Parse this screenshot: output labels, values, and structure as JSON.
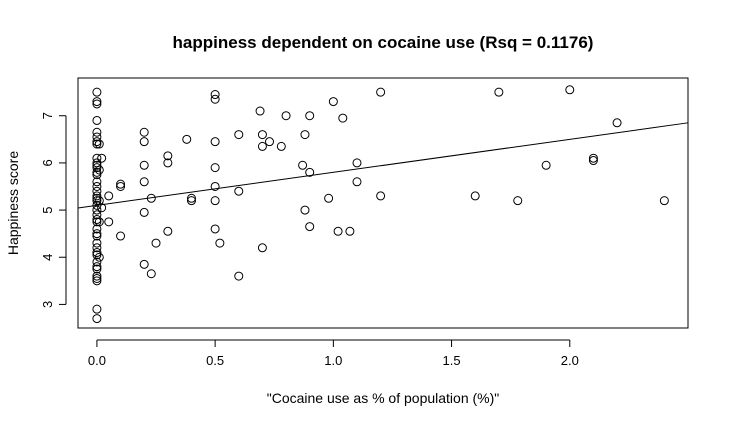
{
  "chart_data": {
    "type": "scatter",
    "title": "happiness dependent on cocaine use (Rsq = 0.1176)",
    "xlabel": "\"Cocaine use as % of population (%)\"",
    "ylabel": "Happiness score",
    "xlim": [
      -0.08,
      2.5
    ],
    "ylim": [
      2.5,
      7.8
    ],
    "x_ticks": [
      0.0,
      0.5,
      1.0,
      1.5,
      2.0
    ],
    "x_tick_labels": [
      "0.0",
      "0.5",
      "1.0",
      "1.5",
      "2.0"
    ],
    "y_ticks": [
      3,
      4,
      5,
      6,
      7
    ],
    "y_tick_labels": [
      "3",
      "4",
      "5",
      "6",
      "7"
    ],
    "grid": false,
    "marker": "open-circle",
    "regression_line": {
      "intercept": 5.1,
      "slope": 0.7
    },
    "points": [
      [
        0.0,
        7.5
      ],
      [
        0.0,
        7.3
      ],
      [
        0.0,
        7.25
      ],
      [
        0.0,
        6.9
      ],
      [
        0.0,
        6.65
      ],
      [
        0.0,
        6.55
      ],
      [
        0.0,
        6.45
      ],
      [
        0.0,
        6.4
      ],
      [
        0.0,
        6.1
      ],
      [
        0.0,
        6.0
      ],
      [
        0.0,
        5.95
      ],
      [
        0.0,
        5.9
      ],
      [
        0.0,
        5.8
      ],
      [
        0.0,
        5.75
      ],
      [
        0.0,
        5.6
      ],
      [
        0.0,
        5.5
      ],
      [
        0.0,
        5.4
      ],
      [
        0.0,
        5.3
      ],
      [
        0.0,
        5.25
      ],
      [
        0.0,
        5.2
      ],
      [
        0.0,
        5.1
      ],
      [
        0.0,
        5.0
      ],
      [
        0.0,
        4.9
      ],
      [
        0.0,
        4.8
      ],
      [
        0.0,
        4.75
      ],
      [
        0.0,
        4.6
      ],
      [
        0.0,
        4.5
      ],
      [
        0.0,
        4.45
      ],
      [
        0.0,
        4.3
      ],
      [
        0.0,
        4.2
      ],
      [
        0.0,
        4.1
      ],
      [
        0.0,
        4.05
      ],
      [
        0.0,
        3.9
      ],
      [
        0.0,
        3.8
      ],
      [
        0.0,
        3.75
      ],
      [
        0.0,
        3.6
      ],
      [
        0.0,
        3.55
      ],
      [
        0.0,
        3.5
      ],
      [
        0.0,
        2.9
      ],
      [
        0.0,
        2.7
      ],
      [
        0.01,
        6.4
      ],
      [
        0.01,
        5.85
      ],
      [
        0.01,
        5.2
      ],
      [
        0.01,
        4.75
      ],
      [
        0.01,
        4.0
      ],
      [
        0.02,
        6.1
      ],
      [
        0.02,
        5.05
      ],
      [
        0.05,
        5.3
      ],
      [
        0.05,
        4.75
      ],
      [
        0.1,
        5.55
      ],
      [
        0.1,
        5.5
      ],
      [
        0.1,
        4.45
      ],
      [
        0.2,
        6.65
      ],
      [
        0.2,
        6.45
      ],
      [
        0.2,
        5.95
      ],
      [
        0.2,
        5.6
      ],
      [
        0.2,
        4.95
      ],
      [
        0.2,
        3.85
      ],
      [
        0.23,
        5.25
      ],
      [
        0.23,
        3.65
      ],
      [
        0.25,
        4.3
      ],
      [
        0.3,
        6.15
      ],
      [
        0.3,
        6.0
      ],
      [
        0.3,
        4.55
      ],
      [
        0.38,
        6.5
      ],
      [
        0.4,
        5.25
      ],
      [
        0.4,
        5.2
      ],
      [
        0.5,
        7.45
      ],
      [
        0.5,
        7.35
      ],
      [
        0.5,
        6.45
      ],
      [
        0.5,
        5.9
      ],
      [
        0.5,
        5.5
      ],
      [
        0.5,
        5.2
      ],
      [
        0.5,
        4.6
      ],
      [
        0.52,
        4.3
      ],
      [
        0.6,
        6.6
      ],
      [
        0.6,
        5.4
      ],
      [
        0.6,
        3.6
      ],
      [
        0.69,
        7.1
      ],
      [
        0.7,
        6.6
      ],
      [
        0.7,
        6.35
      ],
      [
        0.7,
        4.2
      ],
      [
        0.73,
        6.45
      ],
      [
        0.78,
        6.35
      ],
      [
        0.8,
        7.0
      ],
      [
        0.87,
        5.95
      ],
      [
        0.88,
        6.6
      ],
      [
        0.88,
        5.0
      ],
      [
        0.9,
        7.0
      ],
      [
        0.9,
        5.8
      ],
      [
        0.9,
        4.65
      ],
      [
        0.98,
        5.25
      ],
      [
        1.0,
        7.3
      ],
      [
        1.02,
        4.55
      ],
      [
        1.04,
        6.95
      ],
      [
        1.07,
        4.55
      ],
      [
        1.1,
        6.0
      ],
      [
        1.1,
        5.6
      ],
      [
        1.2,
        7.5
      ],
      [
        1.2,
        5.3
      ],
      [
        1.6,
        5.3
      ],
      [
        1.7,
        7.5
      ],
      [
        1.78,
        5.2
      ],
      [
        1.9,
        5.95
      ],
      [
        2.0,
        7.55
      ],
      [
        2.1,
        6.1
      ],
      [
        2.1,
        6.05
      ],
      [
        2.2,
        6.85
      ],
      [
        2.4,
        5.2
      ]
    ]
  }
}
